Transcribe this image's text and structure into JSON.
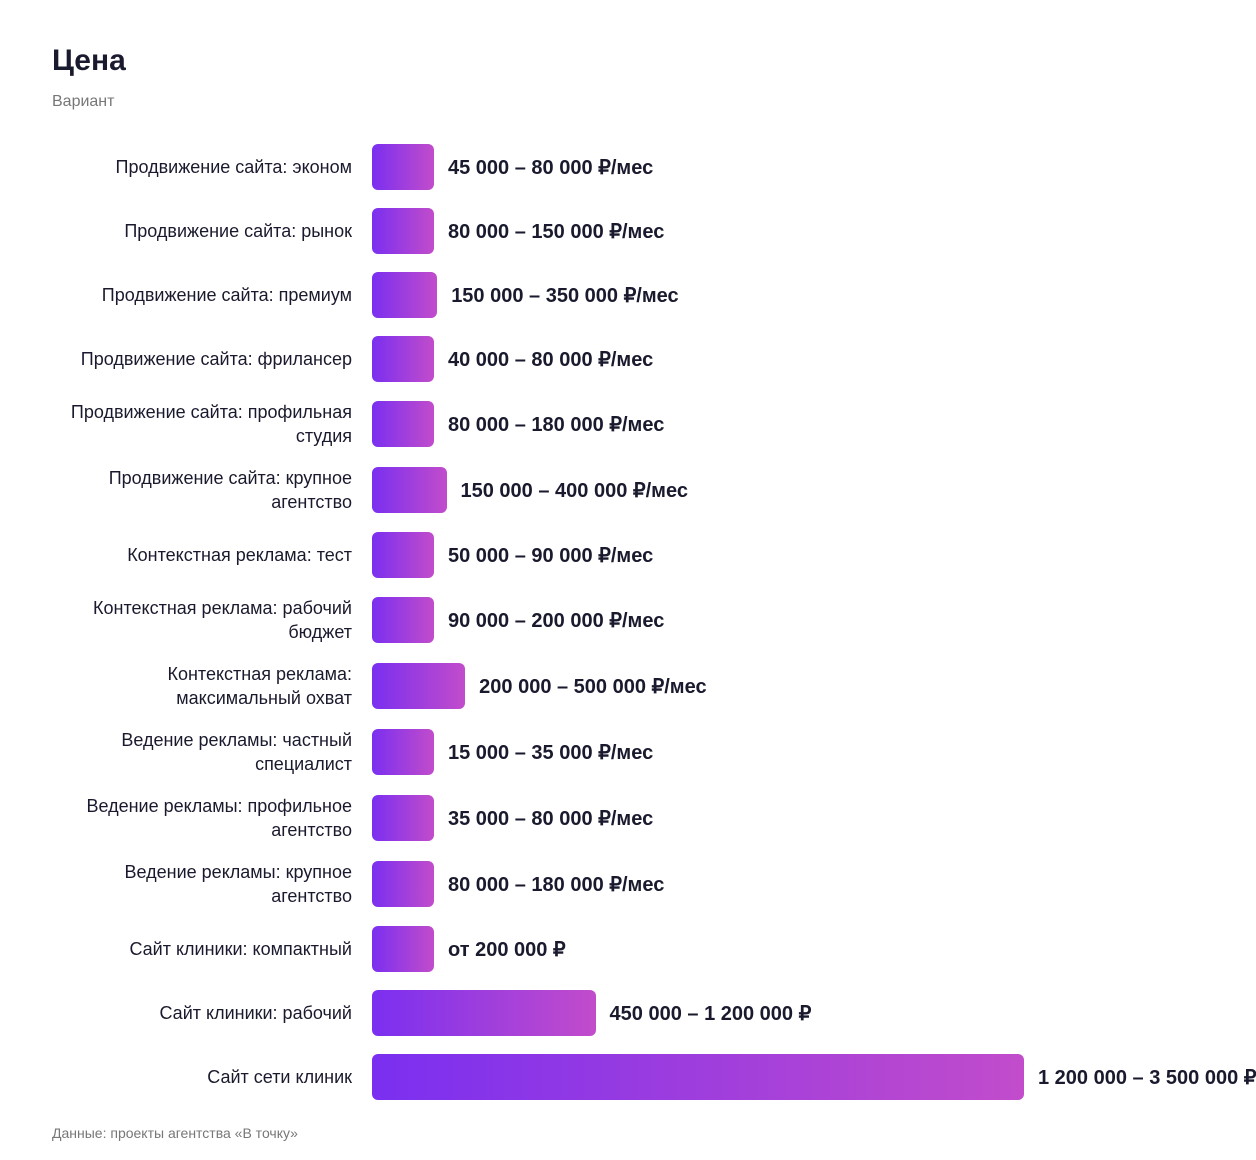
{
  "chart_data": {
    "type": "bar",
    "orientation": "horizontal",
    "title": "Цена",
    "subtitle": "Вариант",
    "categories": [
      "Продвижение сайта: эконом",
      "Продвижение сайта: рынок",
      "Продвижение сайта: премиум",
      "Продвижение сайта: фрилансер",
      "Продвижение сайта: профильная студия",
      "Продвижение сайта: крупное агентство",
      "Контекстная реклама: тест",
      "Контекстная реклама: рабочий бюджет",
      "Контекстная реклама: максимальный охват",
      "Ведение рекламы: частный специалист",
      "Ведение рекламы: профильное агентство",
      "Ведение рекламы: крупное агентство",
      "Сайт клиники: компактный",
      "Сайт клиники: рабочий",
      "Сайт сети клиник"
    ],
    "values": [
      80000,
      150000,
      350000,
      80000,
      180000,
      400000,
      90000,
      200000,
      500000,
      35000,
      80000,
      180000,
      200000,
      1200000,
      3500000
    ],
    "value_labels": [
      "45 000 – 80 000 ₽/мес",
      "80 000 – 150 000 ₽/мес",
      "150 000 – 350 000 ₽/мес",
      "40 000 – 80 000 ₽/мес",
      "80 000 – 180 000 ₽/мес",
      "150 000 – 400 000 ₽/мес",
      "50 000 – 90 000 ₽/мес",
      "90 000 – 200 000 ₽/мес",
      "200 000 – 500 000 ₽/мес",
      "15 000 – 35 000 ₽/мес",
      "35 000 – 80 000 ₽/мес",
      "80 000 – 180 000 ₽/мес",
      "от 200 000 ₽",
      "450 000 – 1 200 000 ₽",
      "1 200 000 – 3 500 000 ₽"
    ],
    "colors": [
      "#7a2ff0",
      "#c24ccb"
    ],
    "source": "Данные: проекты агентства «В точку»"
  }
}
